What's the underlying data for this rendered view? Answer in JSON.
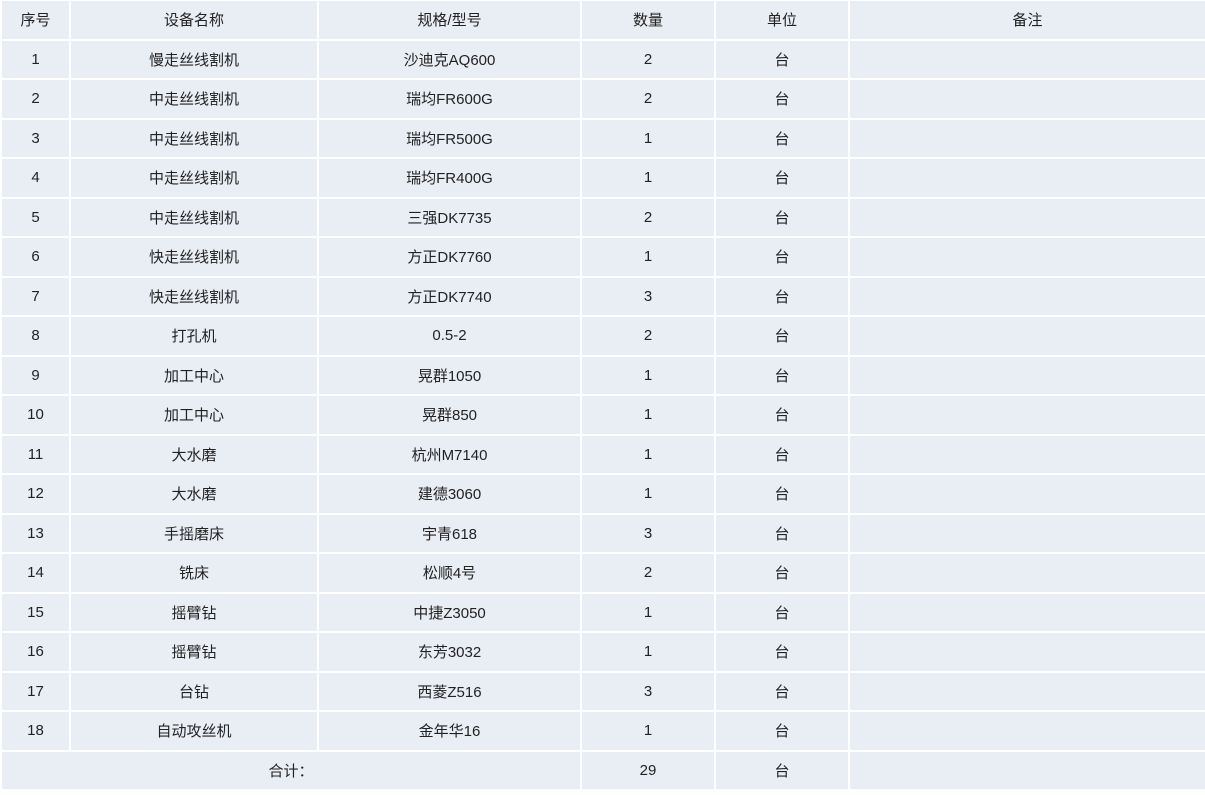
{
  "header": [
    "序号",
    "设备名称",
    "规格/型号",
    "数量",
    "单位",
    "备注"
  ],
  "rows": [
    [
      "1",
      "慢走丝线割机",
      "沙迪克AQ600",
      "2",
      "台",
      ""
    ],
    [
      "2",
      "中走丝线割机",
      "瑞均FR600G",
      "2",
      "台",
      ""
    ],
    [
      "3",
      "中走丝线割机",
      "瑞均FR500G",
      "1",
      "台",
      ""
    ],
    [
      "4",
      "中走丝线割机",
      "瑞均FR400G",
      "1",
      "台",
      ""
    ],
    [
      "5",
      "中走丝线割机",
      "三强DK7735",
      "2",
      "台",
      ""
    ],
    [
      "6",
      "快走丝线割机",
      "方正DK7760",
      "1",
      "台",
      ""
    ],
    [
      "7",
      "快走丝线割机",
      "方正DK7740",
      "3",
      "台",
      ""
    ],
    [
      "8",
      "打孔机",
      "0.5-2",
      "2",
      "台",
      ""
    ],
    [
      "9",
      "加工中心",
      "晃群1050",
      "1",
      "台",
      ""
    ],
    [
      "10",
      "加工中心",
      "晃群850",
      "1",
      "台",
      ""
    ],
    [
      "11",
      "大水磨",
      "杭州M7140",
      "1",
      "台",
      ""
    ],
    [
      "12",
      "大水磨",
      "建德3060",
      "1",
      "台",
      ""
    ],
    [
      "13",
      "手摇磨床",
      "宇青618",
      "3",
      "台",
      ""
    ],
    [
      "14",
      "铣床",
      "松顺4号",
      "2",
      "台",
      ""
    ],
    [
      "15",
      "摇臂钻",
      "中捷Z3050",
      "1",
      "台",
      ""
    ],
    [
      "16",
      "摇臂钻",
      "东芳3032",
      "1",
      "台",
      ""
    ],
    [
      "17",
      "台钻",
      "西菱Z516",
      "3",
      "台",
      ""
    ],
    [
      "18",
      "自动攻丝机",
      "金年华16",
      "1",
      "台",
      ""
    ]
  ],
  "total": {
    "label": "合计：",
    "quantity": "29",
    "unit": "台",
    "remark": ""
  },
  "colors": {
    "cell_bg": "#e9edf4",
    "border": "#ffffff"
  }
}
